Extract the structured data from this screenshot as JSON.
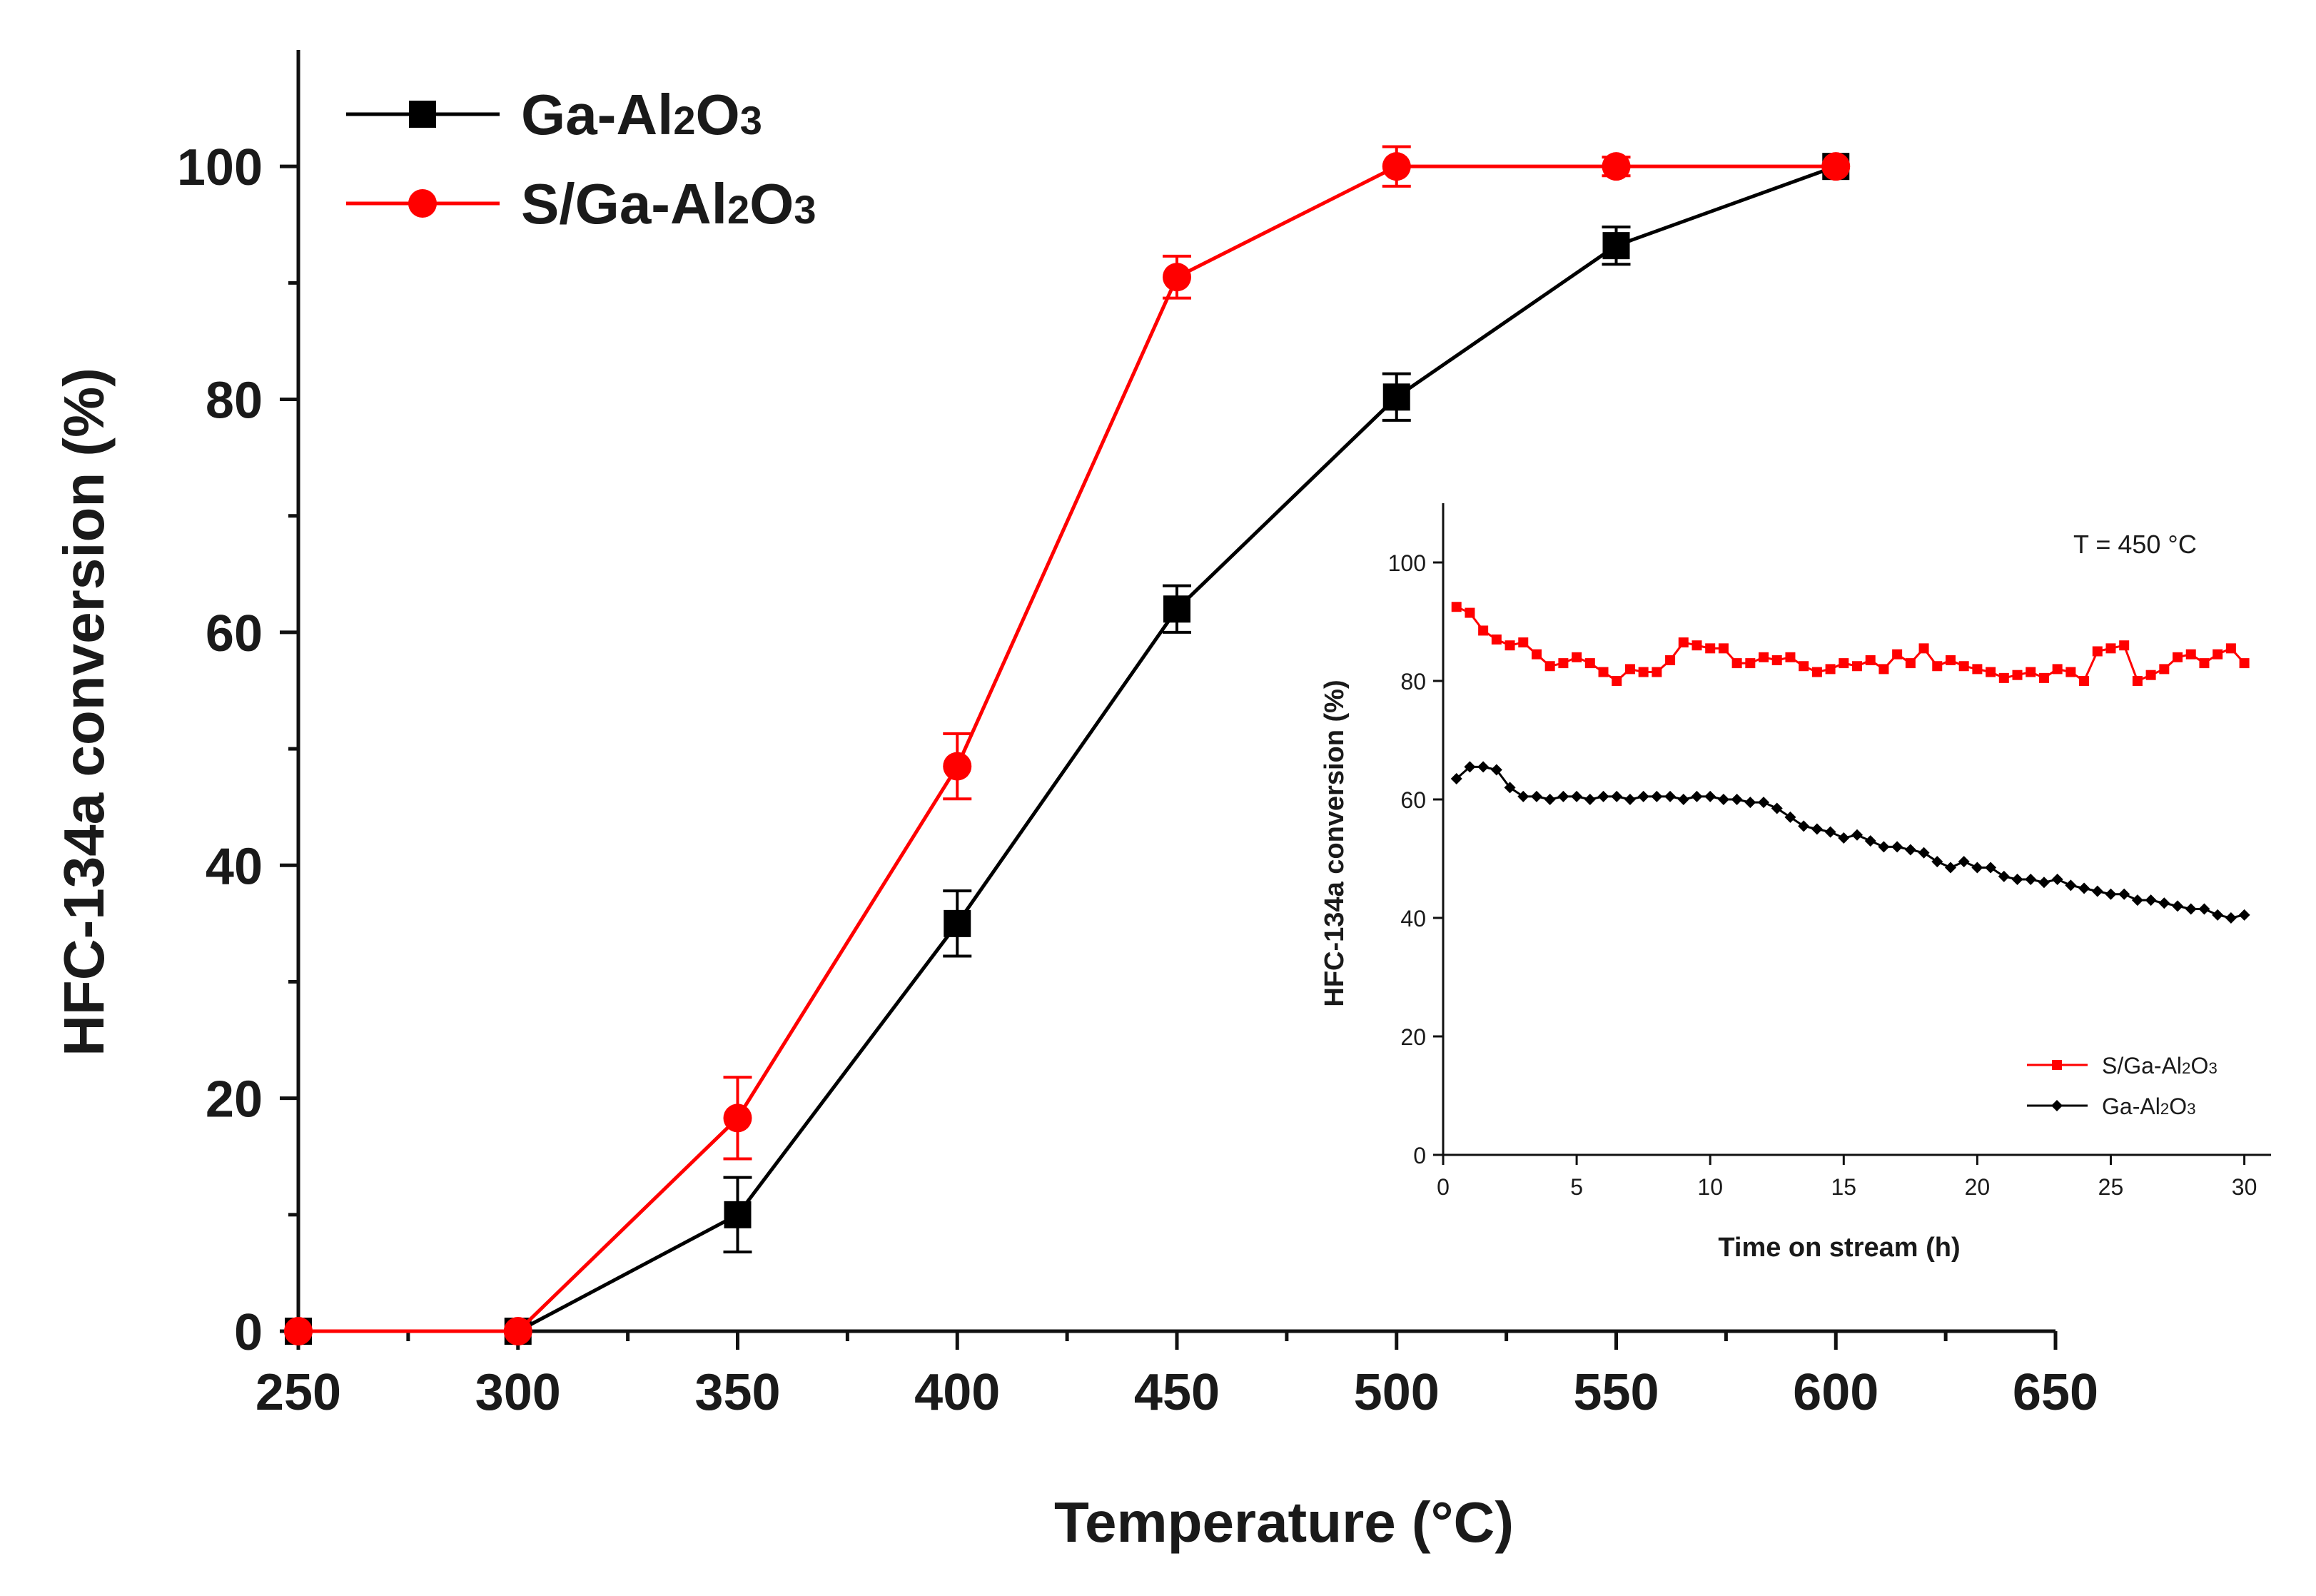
{
  "chart_data": [
    {
      "type": "line",
      "id": "main",
      "xlabel": "Temperature (°C)",
      "ylabel": "HFC-134a conversion (%)",
      "xlim": [
        250,
        650
      ],
      "ylim": [
        0,
        110
      ],
      "xticks": [
        250,
        300,
        350,
        400,
        450,
        500,
        550,
        600,
        650
      ],
      "yticks": [
        0,
        20,
        40,
        60,
        80,
        100
      ],
      "legend_position": "top-left",
      "series": [
        {
          "name": "Ga-Al2O3",
          "name_html": [
            "Ga-Al",
            "2",
            "O",
            "3"
          ],
          "color": "#000000",
          "marker": "square",
          "x": [
            250,
            300,
            350,
            400,
            450,
            500,
            550,
            600
          ],
          "values": [
            0,
            0,
            10,
            35,
            62,
            80.2,
            93.2,
            100
          ],
          "errors": [
            0,
            0,
            3.2,
            2.8,
            2,
            2,
            1.6,
            0.5
          ]
        },
        {
          "name": "S/Ga-Al2O3",
          "name_html": [
            "S/Ga-Al",
            "2",
            "O",
            "3"
          ],
          "color": "#ff0000",
          "marker": "circle",
          "x": [
            250,
            300,
            350,
            400,
            450,
            500,
            550,
            600
          ],
          "values": [
            0,
            0,
            18.3,
            48.5,
            90.5,
            100,
            100,
            100
          ],
          "errors": [
            0,
            0,
            3.5,
            2.8,
            1.8,
            1.7,
            0.8,
            0.5
          ]
        }
      ]
    },
    {
      "type": "line",
      "id": "inset",
      "annotation": "T = 450 °C",
      "xlabel": "Time on stream (h)",
      "ylabel": "HFC-134a conversion (%)",
      "xlim": [
        0,
        31
      ],
      "ylim": [
        0,
        110
      ],
      "xticks": [
        0,
        5,
        10,
        15,
        20,
        25,
        30
      ],
      "yticks": [
        0,
        20,
        40,
        60,
        80,
        100
      ],
      "legend_position": "bottom-right",
      "series": [
        {
          "name": "S/Ga-Al2O3",
          "name_html": [
            "S/Ga-Al",
            "2",
            "O",
            "3"
          ],
          "color": "#ff0000",
          "marker": "square",
          "x": [
            0.5,
            1,
            1.5,
            2,
            2.5,
            3,
            3.5,
            4,
            4.5,
            5,
            5.5,
            6,
            6.5,
            7,
            7.5,
            8,
            8.5,
            9,
            9.5,
            10,
            10.5,
            11,
            11.5,
            12,
            12.5,
            13,
            13.5,
            14,
            14.5,
            15,
            15.5,
            16,
            16.5,
            17,
            17.5,
            18,
            18.5,
            19,
            19.5,
            20,
            20.5,
            21,
            21.5,
            22,
            22.5,
            23,
            23.5,
            24,
            24.5,
            25,
            25.5,
            26,
            26.5,
            27,
            27.5,
            28,
            28.5,
            29,
            29.5,
            30
          ],
          "values": [
            92.5,
            91.5,
            88.5,
            87,
            86,
            86.5,
            84.5,
            82.5,
            83,
            84,
            83,
            81.5,
            80,
            82,
            81.5,
            81.5,
            83.5,
            86.5,
            86,
            85.5,
            85.5,
            83,
            83,
            84,
            83.5,
            84,
            82.5,
            81.5,
            82,
            83,
            82.5,
            83.5,
            82,
            84.5,
            83,
            85.5,
            82.5,
            83.5,
            82.5,
            82,
            81.5,
            80.5,
            81,
            81.5,
            80.5,
            82,
            81.5,
            80,
            85,
            85.5,
            86,
            80,
            81,
            82,
            84,
            84.5,
            83,
            84.5,
            85.5,
            83
          ]
        },
        {
          "name": "Ga-Al2O3",
          "name_html": [
            "Ga-Al",
            "2",
            "O",
            "3"
          ],
          "color": "#000000",
          "marker": "diamond",
          "x": [
            0.5,
            1,
            1.5,
            2,
            2.5,
            3,
            3.5,
            4,
            4.5,
            5,
            5.5,
            6,
            6.5,
            7,
            7.5,
            8,
            8.5,
            9,
            9.5,
            10,
            10.5,
            11,
            11.5,
            12,
            12.5,
            13,
            13.5,
            14,
            14.5,
            15,
            15.5,
            16,
            16.5,
            17,
            17.5,
            18,
            18.5,
            19,
            19.5,
            20,
            20.5,
            21,
            21.5,
            22,
            22.5,
            23,
            23.5,
            24,
            24.5,
            25,
            25.5,
            26,
            26.5,
            27,
            27.5,
            28,
            28.5,
            29,
            29.5,
            30
          ],
          "values": [
            63.5,
            65.5,
            65.5,
            65,
            62,
            60.5,
            60.5,
            60,
            60.5,
            60.5,
            60,
            60.5,
            60.5,
            60,
            60.5,
            60.5,
            60.5,
            60,
            60.5,
            60.5,
            60,
            60,
            59.5,
            59.5,
            58.5,
            57,
            55.5,
            55,
            54.5,
            53.5,
            54,
            53,
            52,
            52,
            51.5,
            51,
            49.5,
            48.5,
            49.5,
            48.5,
            48.5,
            47,
            46.5,
            46.5,
            46,
            46.5,
            45.5,
            45,
            44.5,
            44,
            44,
            43,
            43,
            42.5,
            42,
            41.5,
            41.5,
            40.5,
            40,
            40.5
          ]
        }
      ]
    }
  ]
}
